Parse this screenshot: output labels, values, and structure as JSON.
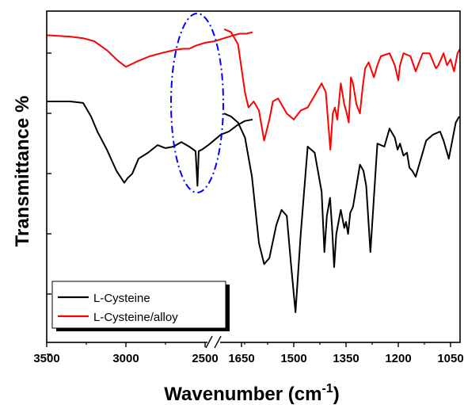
{
  "chart_data": {
    "type": "line",
    "title": "",
    "xlabel": "Wavenumber (cm",
    "xlabel_superscript": "-1",
    "xlabel_suffix": ")",
    "ylabel": "Transmittance %",
    "x_axis_reversed": true,
    "x_axis_break": "between 2200 and 1700",
    "xlim_left": [
      3500,
      2200
    ],
    "xlim_right": [
      1700,
      1020
    ],
    "x_ticks": [
      3500,
      3000,
      2500,
      1650,
      1500,
      1350,
      1200,
      1050
    ],
    "y_tick_labels": "none",
    "grid": false,
    "legend_position": "bottom-left",
    "colors": {
      "l_cysteine": "#000000",
      "l_cysteine_alloy": "#ff0000",
      "highlight_ellipse": "#0000ff"
    },
    "annotation": "dash-dot ellipse around 2550",
    "series": [
      {
        "name": "L-Cysteine",
        "color": "#000000",
        "x": [
          3500,
          3350,
          3270,
          3220,
          3180,
          3120,
          3060,
          3010,
          2990,
          2960,
          2920,
          2860,
          2800,
          2750,
          2700,
          2650,
          2600,
          2560,
          2548,
          2540,
          2520,
          2480,
          2400,
          2350,
          2300,
          2250,
          2200,
          1700,
          1680,
          1660,
          1640,
          1620,
          1600,
          1585,
          1570,
          1550,
          1535,
          1520,
          1508,
          1495,
          1480,
          1460,
          1440,
          1420,
          1412,
          1405,
          1396,
          1390,
          1384,
          1378,
          1365,
          1355,
          1350,
          1344,
          1338,
          1330,
          1320,
          1310,
          1300,
          1292,
          1280,
          1260,
          1240,
          1225,
          1210,
          1202,
          1195,
          1185,
          1175,
          1168,
          1160,
          1150,
          1140,
          1120,
          1100,
          1080,
          1070,
          1060,
          1055,
          1045,
          1035,
          1025
        ],
        "y": [
          80,
          80,
          79.5,
          75,
          70,
          64,
          57,
          53,
          54.5,
          56,
          61,
          63,
          65.5,
          64.5,
          65,
          66.5,
          65,
          63.5,
          52,
          63.5,
          64,
          65.5,
          69,
          70,
          72,
          73.5,
          74,
          76,
          75,
          73,
          68,
          55,
          33,
          26,
          28,
          39,
          44,
          42,
          26,
          10,
          36,
          65,
          63,
          50,
          30,
          42,
          48,
          38,
          25,
          36,
          44,
          38,
          40,
          36,
          43,
          45,
          52,
          59,
          57,
          52,
          30,
          66,
          65,
          71,
          68,
          64,
          66,
          62,
          63,
          58,
          57,
          55,
          59,
          67,
          69,
          70,
          67,
          63,
          61,
          67,
          73,
          75
        ]
      },
      {
        "name": "L-Cysteine/alloy",
        "color": "#ff0000",
        "x": [
          3500,
          3350,
          3270,
          3200,
          3120,
          3050,
          3000,
          2960,
          2920,
          2850,
          2780,
          2700,
          2640,
          2600,
          2560,
          2500,
          2440,
          2380,
          2320,
          2280,
          2240,
          2200,
          1700,
          1680,
          1660,
          1640,
          1630,
          1615,
          1600,
          1585,
          1570,
          1560,
          1545,
          1530,
          1520,
          1510,
          1500,
          1480,
          1460,
          1440,
          1420,
          1408,
          1395,
          1388,
          1382,
          1375,
          1365,
          1355,
          1350,
          1342,
          1336,
          1330,
          1320,
          1310,
          1302,
          1295,
          1285,
          1270,
          1260,
          1250,
          1225,
          1210,
          1200,
          1195,
          1185,
          1165,
          1150,
          1130,
          1110,
          1092,
          1085,
          1070,
          1060,
          1050,
          1040,
          1030,
          1020
        ],
        "y": [
          102,
          101.5,
          101,
          100,
          97,
          93.5,
          91.5,
          92.5,
          93.5,
          95,
          96,
          97,
          97.5,
          97.5,
          98.5,
          99.5,
          100,
          101,
          102,
          102.5,
          102.5,
          103,
          104,
          103,
          99,
          83,
          78,
          80,
          77,
          67,
          74,
          80,
          81,
          78,
          76,
          75,
          74,
          77,
          78,
          82,
          86,
          83,
          64,
          76,
          78,
          74,
          86,
          79,
          77,
          73,
          88,
          86,
          79,
          76,
          85,
          91,
          93,
          88,
          92,
          95,
          96,
          92,
          87,
          92,
          96,
          95,
          90,
          96,
          96,
          91,
          92,
          96,
          92,
          94,
          90,
          96,
          98
        ]
      }
    ]
  }
}
